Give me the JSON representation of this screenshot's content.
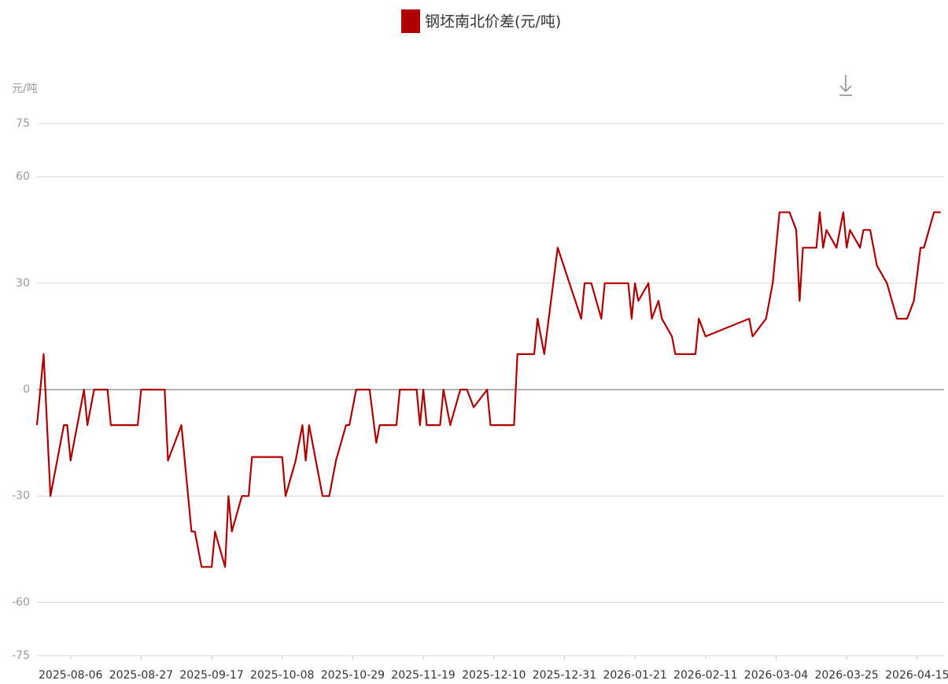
{
  "chart_data": {
    "type": "line",
    "y_label": "元/吨",
    "x": [
      "2025-07-27",
      "2025-07-29",
      "2025-07-31",
      "2025-08-04",
      "2025-08-05",
      "2025-08-06",
      "2025-08-10",
      "2025-08-11",
      "2025-08-13",
      "2025-08-17",
      "2025-08-18",
      "2025-08-26",
      "2025-08-27",
      "2025-09-03",
      "2025-09-04",
      "2025-09-08",
      "2025-09-11",
      "2025-09-12",
      "2025-09-14",
      "2025-09-17",
      "2025-09-18",
      "2025-09-21",
      "2025-09-22",
      "2025-09-23",
      "2025-09-26",
      "2025-09-28",
      "2025-09-29",
      "2025-10-08",
      "2025-10-09",
      "2025-10-12",
      "2025-10-14",
      "2025-10-15",
      "2025-10-16",
      "2025-10-20",
      "2025-10-22",
      "2025-10-24",
      "2025-10-27",
      "2025-10-28",
      "2025-10-30",
      "2025-11-03",
      "2025-11-05",
      "2025-11-06",
      "2025-11-11",
      "2025-11-12",
      "2025-11-17",
      "2025-11-18",
      "2025-11-19",
      "2025-11-20",
      "2025-11-24",
      "2025-11-25",
      "2025-11-27",
      "2025-11-30",
      "2025-12-02",
      "2025-12-04",
      "2025-12-08",
      "2025-12-09",
      "2025-12-16",
      "2025-12-17",
      "2025-12-22",
      "2025-12-23",
      "2025-12-25",
      "2025-12-29",
      "2026-01-05",
      "2026-01-06",
      "2026-01-08",
      "2026-01-11",
      "2026-01-12",
      "2026-01-19",
      "2026-01-20",
      "2026-01-21",
      "2026-01-22",
      "2026-01-25",
      "2026-01-26",
      "2026-01-28",
      "2026-01-29",
      "2026-02-01",
      "2026-02-02",
      "2026-02-08",
      "2026-02-09",
      "2026-02-11",
      "2026-02-24",
      "2026-02-25",
      "2026-03-01",
      "2026-03-03",
      "2026-03-05",
      "2026-03-08",
      "2026-03-10",
      "2026-03-11",
      "2026-03-12",
      "2026-03-16",
      "2026-03-17",
      "2026-03-18",
      "2026-03-19",
      "2026-03-22",
      "2026-03-24",
      "2026-03-25",
      "2026-03-26",
      "2026-03-29",
      "2026-03-30",
      "2026-04-01",
      "2026-04-03",
      "2026-04-06",
      "2026-04-09",
      "2026-04-12",
      "2026-04-14",
      "2026-04-16",
      "2026-04-17",
      "2026-04-20",
      "2026-04-22"
    ],
    "series": [
      {
        "name": "钢坯南北价差(元/吨)",
        "color": "#b00000",
        "values": [
          -10,
          10,
          -30,
          -10,
          -10,
          -20,
          0,
          -10,
          0,
          0,
          -10,
          -10,
          0,
          0,
          -20,
          -10,
          -40,
          -40,
          -50,
          -50,
          -40,
          -50,
          -30,
          -40,
          -30,
          -30,
          -19,
          -19,
          -30,
          -20,
          -10,
          -20,
          -10,
          -30,
          -30,
          -20,
          -10,
          -10,
          0,
          0,
          -15,
          -10,
          -10,
          0,
          0,
          -10,
          0,
          -10,
          -10,
          0,
          -10,
          0,
          0,
          -5,
          0,
          -10,
          -10,
          10,
          10,
          20,
          10,
          40,
          20,
          30,
          30,
          20,
          30,
          30,
          20,
          30,
          25,
          30,
          20,
          25,
          20,
          15,
          10,
          10,
          20,
          15,
          20,
          15,
          20,
          30,
          50,
          50,
          45,
          25,
          40,
          40,
          50,
          40,
          45,
          40,
          50,
          40,
          45,
          40,
          45,
          45,
          35,
          30,
          20,
          20,
          25,
          40,
          40,
          50,
          50
        ]
      }
    ],
    "xlim": [
      "2025-07-27",
      "2026-04-23"
    ],
    "xticks": [
      "2025-08-06",
      "2025-08-27",
      "2025-09-17",
      "2025-10-08",
      "2025-10-29",
      "2025-11-19",
      "2025-12-10",
      "2025-12-31",
      "2026-01-21",
      "2026-02-11",
      "2026-03-04",
      "2026-03-25",
      "2026-04-15"
    ],
    "ylim": [
      -75,
      75
    ],
    "yticks": [
      75,
      60,
      30,
      0,
      -30,
      -60,
      -75
    ],
    "grid": true
  }
}
